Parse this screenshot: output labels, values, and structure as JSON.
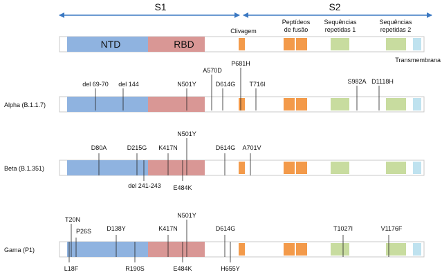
{
  "header": {
    "s1": "S1",
    "s2": "S2"
  },
  "features": {
    "ntd": "NTD",
    "rbd": "RBD",
    "clivagem": "Clivagem",
    "peptideos_line1": "Peptídeos",
    "peptideos_line2": "de fusão",
    "seq1_line1": "Sequências",
    "seq1_line2": "repetidas 1",
    "seq2_line1": "Sequências",
    "seq2_line2": "repetidas 2",
    "transmembrana": "Transmembrana"
  },
  "colors": {
    "ntd": "#8fb3e0",
    "rbd": "#d99795",
    "orange": "#f39a4a",
    "green": "#c8dc9f",
    "tm": "#bfe2ef",
    "arrow": "#3a78c2"
  },
  "rows": [
    {
      "label": "",
      "mutations_above": [],
      "mutations_below": []
    },
    {
      "label": "Alpha (B.1.1.7)",
      "mutations_above": [
        {
          "text": "del 69-70"
        },
        {
          "text": "del 144"
        },
        {
          "text": "N501Y"
        },
        {
          "text": "A570D"
        },
        {
          "text": "D614G"
        },
        {
          "text": "P681H"
        },
        {
          "text": "T716I"
        },
        {
          "text": "S982A"
        },
        {
          "text": "D1118H"
        }
      ],
      "mutations_below": []
    },
    {
      "label": "Beta (B.1.351)",
      "mutations_above": [
        {
          "text": "D80A"
        },
        {
          "text": "D215G"
        },
        {
          "text": "K417N"
        },
        {
          "text": "N501Y"
        },
        {
          "text": "D614G"
        },
        {
          "text": "A701V"
        }
      ],
      "mutations_below": [
        {
          "text": "del 241-243"
        },
        {
          "text": "E484K"
        }
      ]
    },
    {
      "label": "Gama (P1)",
      "mutations_above": [
        {
          "text": "T20N"
        },
        {
          "text": "P26S"
        },
        {
          "text": "D138Y"
        },
        {
          "text": "K417N"
        },
        {
          "text": "N501Y"
        },
        {
          "text": "D614G"
        },
        {
          "text": "T1027I"
        },
        {
          "text": "V1176F"
        }
      ],
      "mutations_below": [
        {
          "text": "L18F"
        },
        {
          "text": "R190S"
        },
        {
          "text": "E484K"
        },
        {
          "text": "H655Y"
        }
      ]
    }
  ]
}
